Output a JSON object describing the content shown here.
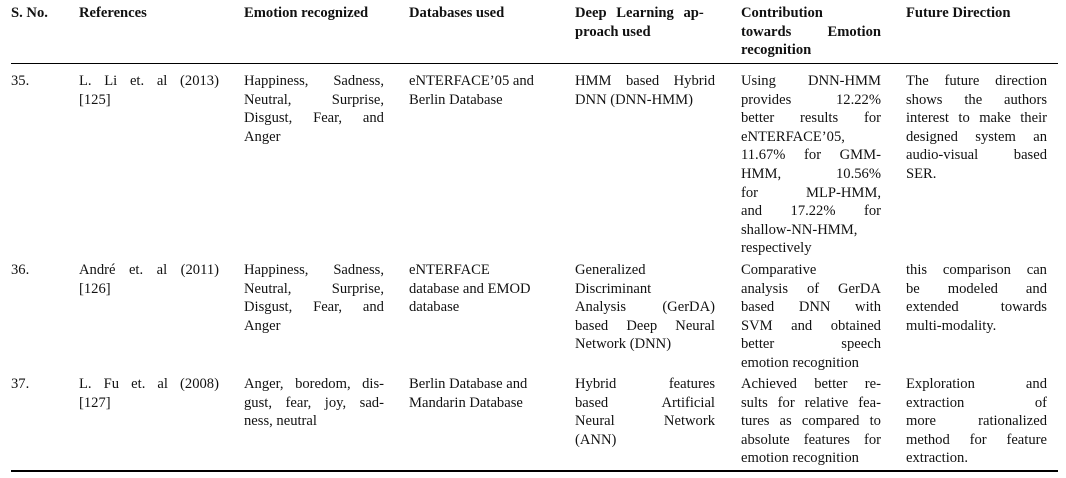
{
  "headers": {
    "sno": "S. No.",
    "references": "References",
    "emotion": "Emotion recognized",
    "databases": "Databases used",
    "deep_learning_l1": "Deep Learning ap-",
    "deep_learning_l2": "proach used",
    "contribution_l1": "Contribution",
    "contribution_l2a": "towards",
    "contribution_l2b": "Emotion",
    "contribution_l3": "recognition",
    "future": "Future Direction"
  },
  "rows": [
    {
      "sno": "35.",
      "ref_l1": "L. Li et. al (2013)",
      "ref_l2": "[125]",
      "emotion": [
        "Happiness, Sadness,",
        "Neutral, Surprise,",
        "Disgust, Fear, and",
        "Anger"
      ],
      "databases": [
        "eNTERFACE’05 and",
        "Berlin Database"
      ],
      "approach": [
        "HMM based Hybrid",
        "DNN (DNN-HMM)"
      ],
      "contribution": [
        "Using DNN-HMM",
        "provides 12.22%",
        "better results for",
        "eNTERFACE’05,",
        "11.67% for GMM-",
        "HMM, 10.56%",
        "for MLP-HMM,",
        "and 17.22% for",
        "shallow-NN-HMM,",
        "respectively"
      ],
      "future": [
        "The future direction",
        "shows the authors",
        "interest to make their",
        "designed system an",
        "audio-visual based",
        "SER."
      ]
    },
    {
      "sno": "36.",
      "ref_l1": "André et. al (2011)",
      "ref_l2": "[126]",
      "emotion": [
        "Happiness, Sadness,",
        "Neutral, Surprise,",
        "Disgust, Fear, and",
        "Anger"
      ],
      "databases": [
        "eNTERFACE",
        "database and EMOD",
        "database"
      ],
      "approach": [
        "Generalized",
        "Discriminant",
        "Analysis (GerDA)",
        "based Deep Neural",
        "Network (DNN)"
      ],
      "contribution": [
        "Comparative",
        "analysis of GerDA",
        "based DNN with",
        "SVM and obtained",
        "better speech",
        "emotion recognition"
      ],
      "future": [
        "this comparison can",
        "be modeled and",
        "extended towards",
        "multi-modality."
      ]
    },
    {
      "sno": "37.",
      "ref_l1": "L. Fu et. al (2008)",
      "ref_l2": "[127]",
      "emotion": [
        "Anger, boredom, dis-",
        "gust, fear, joy, sad-",
        "ness, neutral"
      ],
      "databases": [
        "Berlin Database and",
        "Mandarin Database"
      ],
      "approach": [
        "Hybrid features",
        "based Artificial",
        "Neural Network",
        "(ANN)"
      ],
      "contribution": [
        "Achieved better re-",
        "sults for relative fea-",
        "tures as compared to",
        "absolute features for",
        "emotion recognition"
      ],
      "future": [
        "Exploration and",
        "extraction of",
        "more rationalized",
        "method for feature",
        "extraction."
      ]
    }
  ]
}
